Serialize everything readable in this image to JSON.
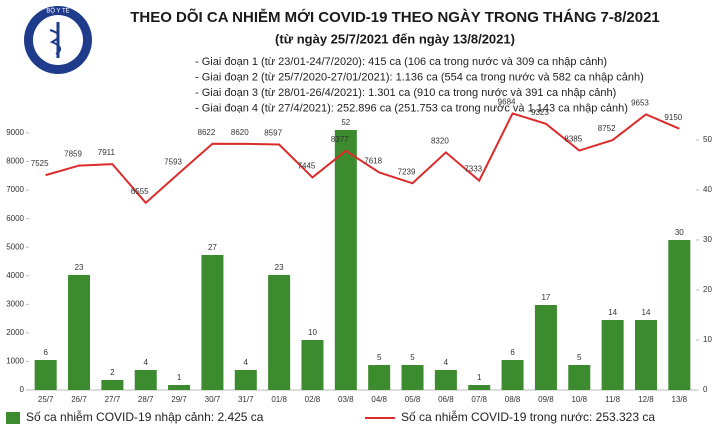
{
  "logo_text": "BỘ Y TẾ",
  "chart_data": {
    "type": "bar",
    "title": "THEO DÕI CA NHIỄM MỚI COVID-19 THEO NGÀY TRONG THÁNG 7-8/2021",
    "subtitle": "(từ ngày 25/7/2021 đến ngày 13/8/2021)",
    "annotations": [
      "- Giai đoạn 1 (từ 23/01-24/7/2020): 415 ca (106 ca trong nước và 309 ca nhập cảnh)",
      "- Giai đoạn 2 (từ 25/7/2020-27/01/2021): 1.136 ca (554 ca trong nước và 582 ca nhập cảnh)",
      "- Giai đoạn 3 (từ 28/01-26/4/2021): 1.301 ca (910 ca trong nước và 391 ca nhập cảnh)",
      "- Giai đoạn 4 (từ 27/4/2021): 252.896 ca (251.753 ca trong nước và 1.143 ca nhập cảnh)"
    ],
    "categories": [
      "25/7",
      "26/7",
      "27/7",
      "28/7",
      "29/7",
      "30/7",
      "31/7",
      "01/8",
      "02/8",
      "03/8",
      "04/8",
      "05/8",
      "06/8",
      "07/8",
      "08/8",
      "09/8",
      "10/8",
      "11/8",
      "12/8",
      "13/8"
    ],
    "series": [
      {
        "name": "Số ca nhiễm COVID-19 nhập cảnh: 2.425 ca",
        "type": "bar",
        "axis": "y2",
        "color": "#3d8b2f",
        "values": [
          6,
          23,
          2,
          4,
          1,
          27,
          4,
          23,
          10,
          52,
          5,
          5,
          4,
          1,
          6,
          17,
          5,
          14,
          14,
          30
        ]
      },
      {
        "name": "Số ca nhiễm COVID-19 trong nước: 253.323 ca",
        "type": "line",
        "color": "#dc2b2b",
        "values": [
          7525,
          7859,
          7911,
          6555,
          7593,
          8622,
          8620,
          8597,
          7445,
          8377,
          7618,
          7239,
          8320,
          7333,
          9684,
          9323,
          8385,
          8752,
          9653,
          9150
        ]
      }
    ],
    "ylim": [
      0,
      9000
    ],
    "yticks": [
      0,
      1000,
      2000,
      3000,
      4000,
      5000,
      6000,
      7000,
      8000,
      9000
    ],
    "y2lim": [
      0,
      50
    ],
    "y2ticks": [
      0,
      10,
      20,
      30,
      40,
      50
    ],
    "grid": false
  }
}
